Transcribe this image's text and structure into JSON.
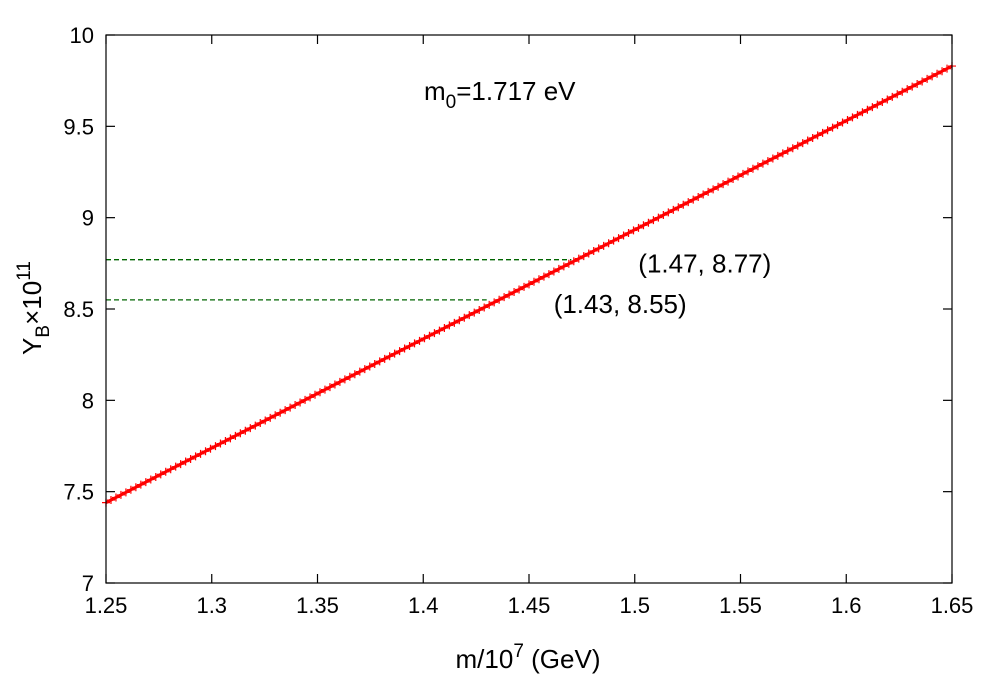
{
  "chart_data": {
    "type": "line",
    "title": "",
    "xlabel_main": "m/10",
    "xlabel_sup": "7",
    "xlabel_unit": " (GeV)",
    "ylabel_base": "Y",
    "ylabel_sub": "B",
    "ylabel_mid": "×10",
    "ylabel_sup": "11",
    "xlim": [
      1.25,
      1.65
    ],
    "ylim": [
      7,
      10
    ],
    "xticks": [
      1.25,
      1.3,
      1.35,
      1.4,
      1.45,
      1.5,
      1.55,
      1.6,
      1.65
    ],
    "xtick_labels": [
      "1.25",
      "1.3",
      "1.35",
      "1.4",
      "1.45",
      "1.5",
      "1.55",
      "1.6",
      "1.65"
    ],
    "yticks": [
      7,
      7.5,
      8,
      8.5,
      9,
      9.5,
      10
    ],
    "ytick_labels": [
      "7",
      "7.5",
      "8",
      "8.5",
      "9",
      "9.5",
      "10"
    ],
    "grid": false,
    "series": [
      {
        "marker": "plus",
        "color": "#ff0000",
        "x": [
          1.25,
          1.65
        ],
        "y": [
          7.44,
          9.83
        ]
      }
    ],
    "reference_lines": [
      {
        "y": 8.77,
        "x_end": 1.47,
        "color": "#006400",
        "style": "dashed"
      },
      {
        "y": 8.55,
        "x_end": 1.43,
        "color": "#006400",
        "style": "dashed"
      }
    ],
    "annotations": [
      {
        "text": "(1.47, 8.77)",
        "x": 1.47,
        "y": 8.77
      },
      {
        "text": "(1.43, 8.55)",
        "x": 1.43,
        "y": 8.55
      }
    ],
    "inset_label": {
      "base": "m",
      "sub": "0",
      "rest": "=1.717 eV"
    }
  }
}
